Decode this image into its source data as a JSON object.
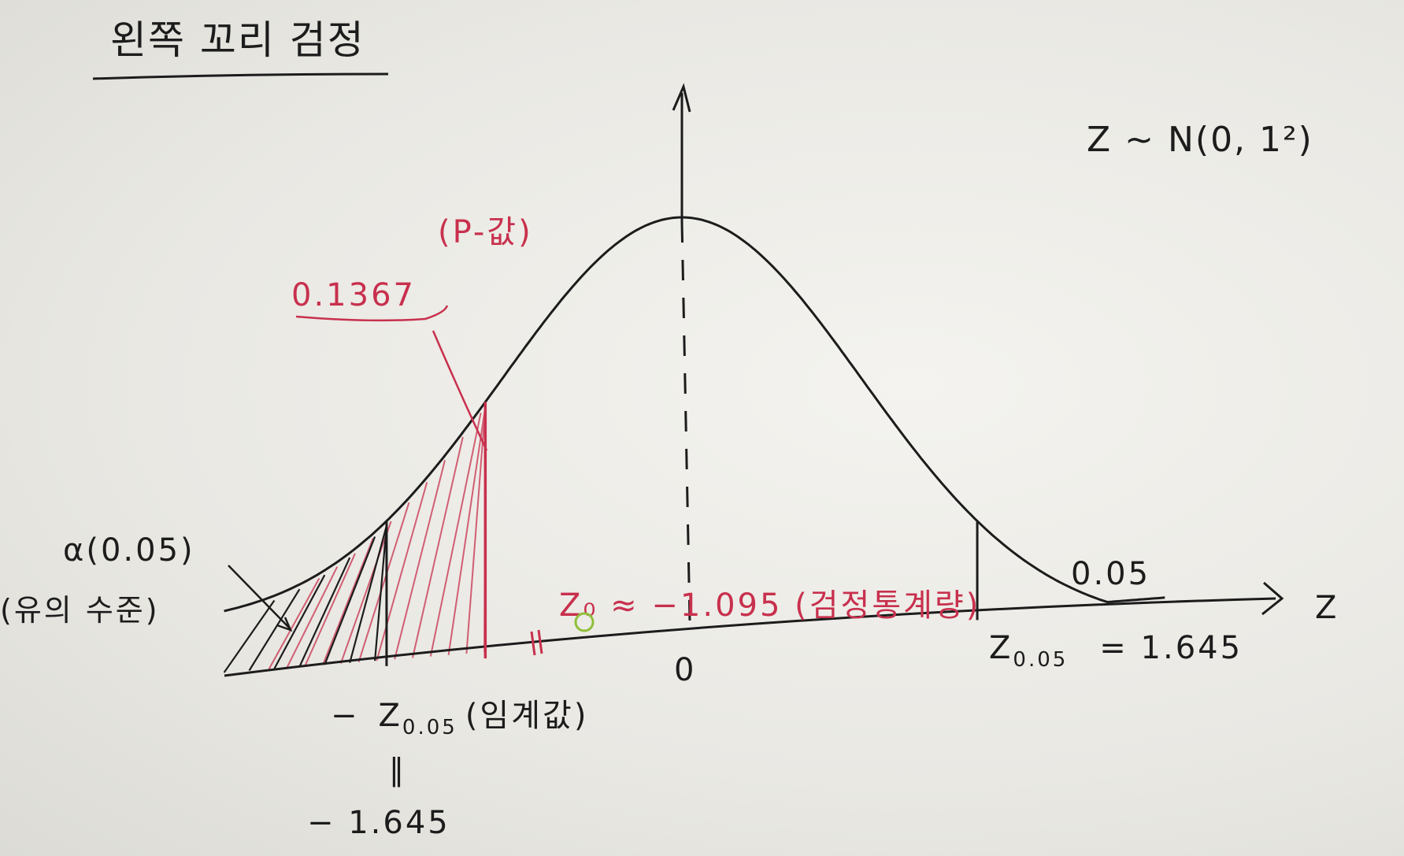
{
  "title": "왼쪽 꼬리 검정",
  "distribution": "Z ~ N(0, 1²)",
  "axis": {
    "x_label": "Z",
    "origin_label": "0"
  },
  "annotations": {
    "pvalue_label": "(P-값)",
    "pvalue_value": "0.1367",
    "alpha": "α(0.05)",
    "alpha_desc": "(유의 수준)",
    "test_stat": "Z₀ ≈ −1.095 (검정통계량)",
    "right_tail": "0.05",
    "critical_right": {
      "z": "Z",
      "sub": "0.05",
      "value": "= 1.645"
    },
    "critical_left": {
      "minus": "−",
      "z": "Z",
      "sub": "0.05",
      "desc": "(임계값)",
      "eq": "‖",
      "value": "− 1.645"
    }
  },
  "colors": {
    "ink": "#1c1c1c",
    "red": "#c8304d",
    "green": "#8fbf3a",
    "paper": "#f1f0ec"
  },
  "chart_data": {
    "type": "area",
    "distribution": "standard normal",
    "mean": 0,
    "sd": 1,
    "critical_value": -1.645,
    "test_statistic": -1.095,
    "p_value": 0.1367,
    "alpha": 0.05,
    "right_tail_critical": 1.645,
    "right_tail_area": 0.05
  }
}
